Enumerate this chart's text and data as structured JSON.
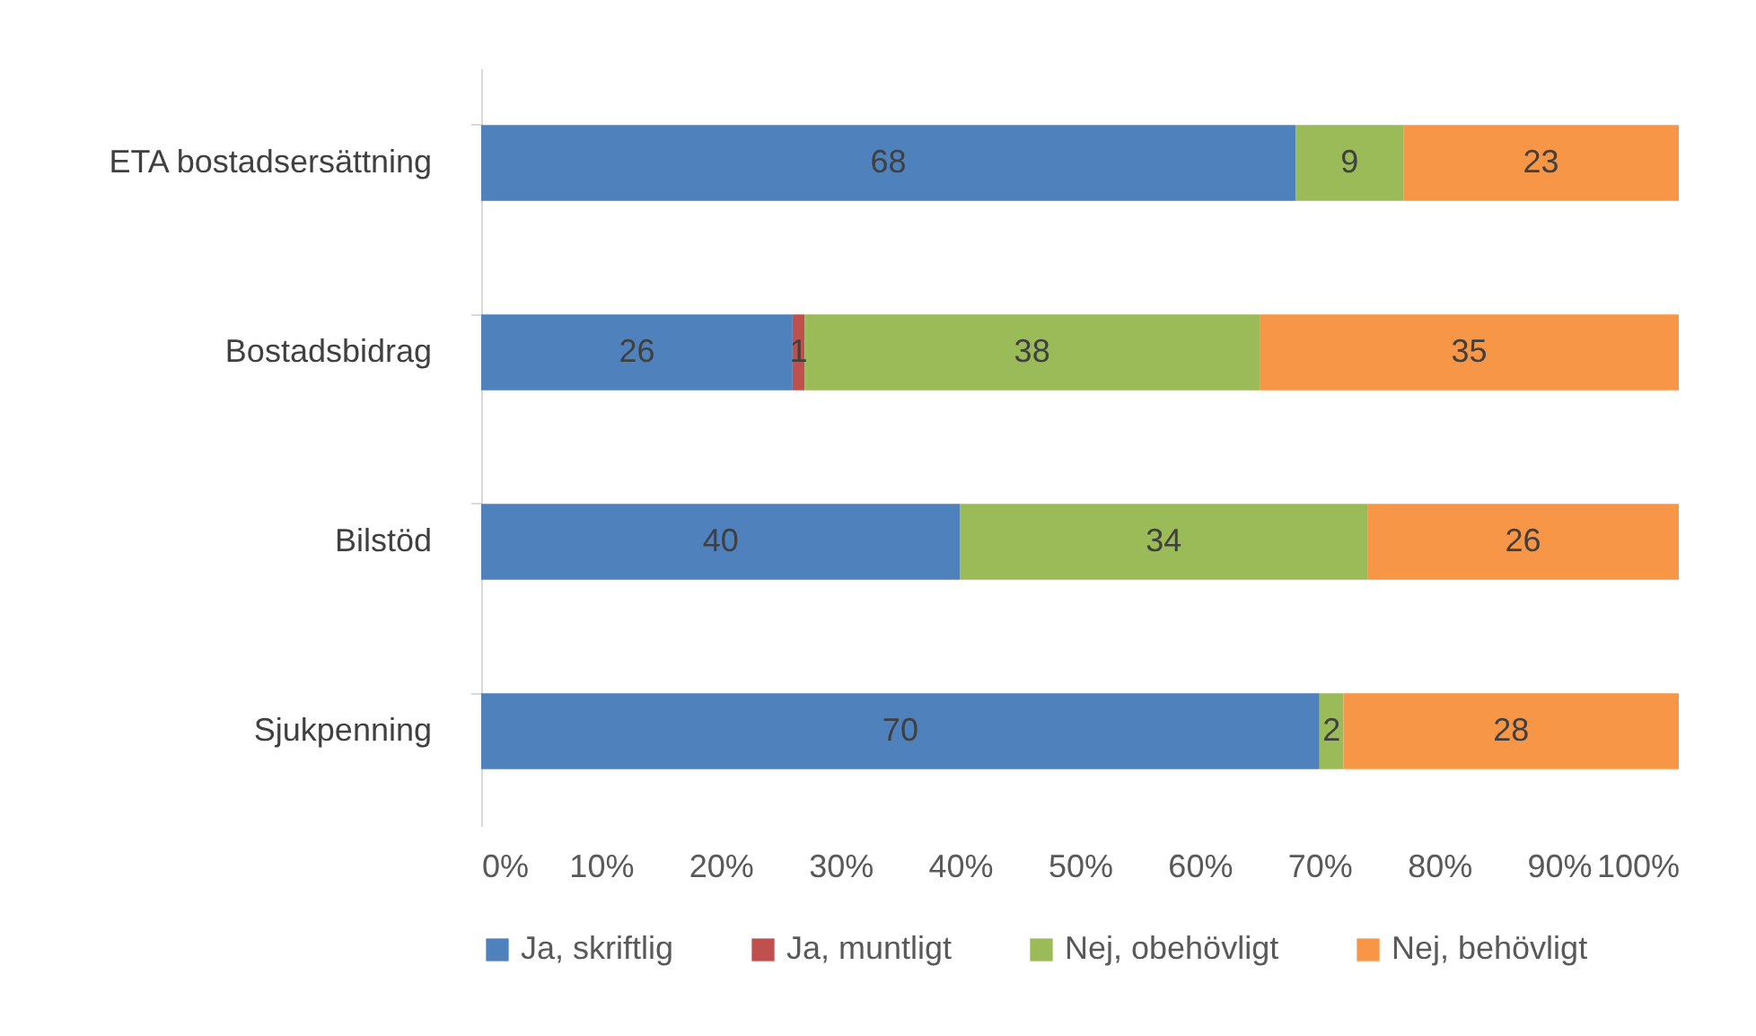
{
  "chart_data": {
    "type": "bar",
    "orientation": "horizontal",
    "stacked": true,
    "categories": [
      "ETA bostadsersättning",
      "Bostadsbidrag",
      "Bilstöd",
      "Sjukpenning"
    ],
    "series": [
      {
        "name": "Ja, skriftlig",
        "color": "#4f81bd",
        "values": [
          68,
          26,
          40,
          70
        ],
        "value_labels": [
          "68",
          "26",
          "40",
          "70"
        ]
      },
      {
        "name": "Ja, muntligt",
        "color": "#c0504d",
        "values": [
          0,
          1,
          0,
          0
        ],
        "value_labels": [
          null,
          "1",
          null,
          null
        ]
      },
      {
        "name": "Nej, obehövligt",
        "color": "#9bbb59",
        "values": [
          9,
          38,
          34,
          2
        ],
        "value_labels": [
          "9",
          "38",
          "34",
          "2"
        ]
      },
      {
        "name": "Nej, behövligt",
        "color": "#f79646",
        "values": [
          23,
          35,
          26,
          28
        ],
        "value_labels": [
          "23",
          "35",
          "26",
          "28"
        ]
      }
    ],
    "xlim": [
      0,
      100
    ],
    "xticks": [
      {
        "value": 0,
        "label": "0%"
      },
      {
        "value": 10,
        "label": "10%"
      },
      {
        "value": 20,
        "label": "20%"
      },
      {
        "value": 30,
        "label": "30%"
      },
      {
        "value": 40,
        "label": "40%"
      },
      {
        "value": 50,
        "label": "50%"
      },
      {
        "value": 60,
        "label": "60%"
      },
      {
        "value": 70,
        "label": "70%"
      },
      {
        "value": 80,
        "label": "80%"
      },
      {
        "value": 90,
        "label": "90%"
      },
      {
        "value": 100,
        "label": "100%"
      }
    ],
    "grid": false,
    "legend": "bottom"
  }
}
